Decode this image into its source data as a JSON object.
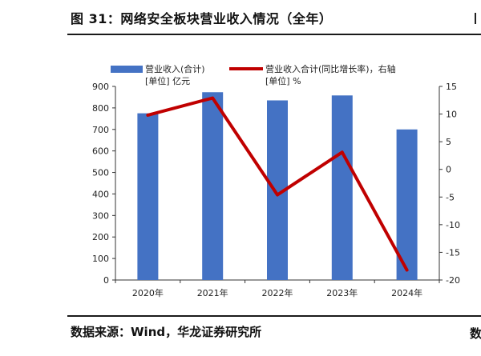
{
  "figure": {
    "title": "图 31：网络安全板块营业收入情况（全年）",
    "source": "数据来源：Wind，华龙证券研究所",
    "source_cut": "数"
  },
  "colors": {
    "bar": "#4472C4",
    "line": "#C00000",
    "axis": "#333333",
    "text": "#222222"
  },
  "chart_data": {
    "type": "bar",
    "categories": [
      "2020年",
      "2021年",
      "2022年",
      "2023年",
      "2024年"
    ],
    "series": [
      {
        "name": "营业收入(合计) [单位] 亿元",
        "name_line1": "营业收入(合计)",
        "name_line2": "[单位] 亿元",
        "type": "bar",
        "axis": "left",
        "values": [
          775,
          873,
          835,
          858,
          700
        ]
      },
      {
        "name": "营业收入合计(同比增长率)，右轴 [单位] %",
        "name_line1": "营业收入合计(同比增长率)，右轴",
        "name_line2": "[单位] %",
        "type": "line",
        "axis": "right",
        "values": [
          9.8,
          12.9,
          -4.6,
          3.1,
          -18.2
        ]
      }
    ],
    "y_left": {
      "range": [
        0,
        900
      ],
      "ticks": [
        0,
        100,
        200,
        300,
        400,
        500,
        600,
        700,
        800,
        900
      ]
    },
    "y_right": {
      "range": [
        -20,
        15
      ],
      "ticks": [
        -20,
        -15,
        -10,
        -5,
        0,
        5,
        10,
        15
      ]
    },
    "grid": false,
    "legend_position": "top"
  }
}
